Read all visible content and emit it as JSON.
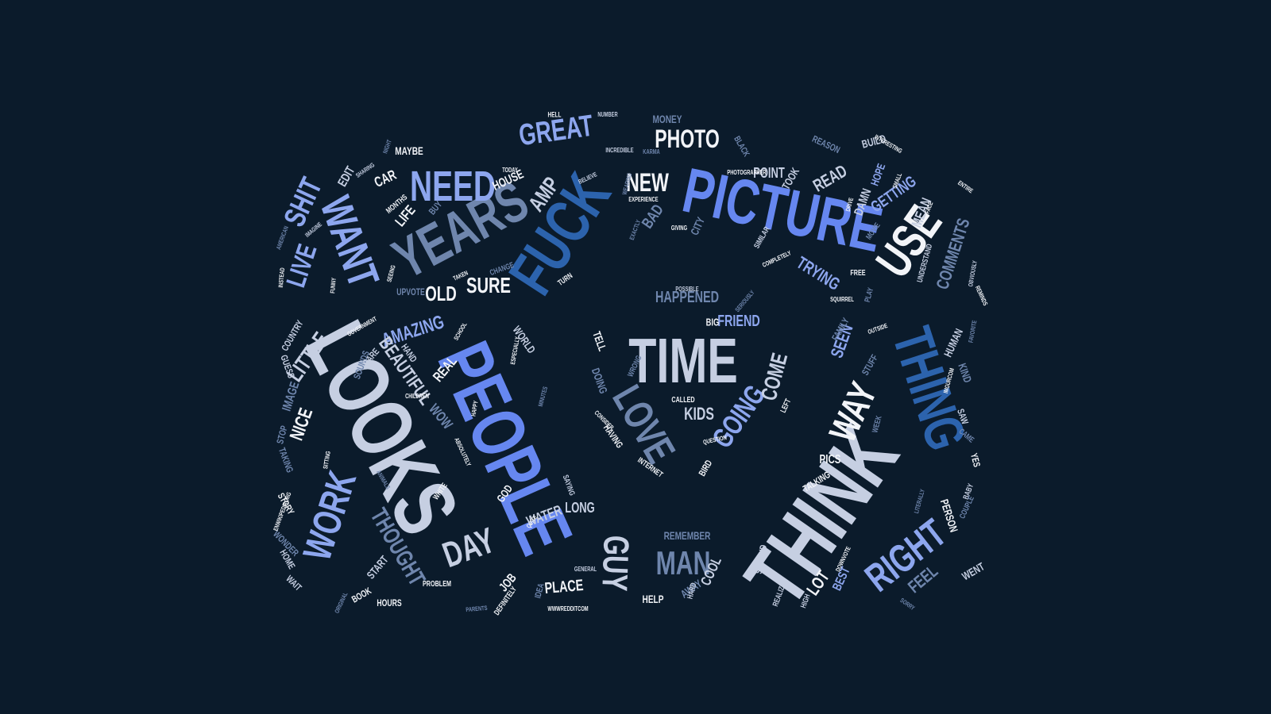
{
  "colors": {
    "background": "#0b1b2b",
    "white": "#f2f4f8",
    "pale": "#c6cfe2",
    "periwinkle": "#8da6ee",
    "blue": "#6687f0",
    "steel": "#6f86ad",
    "deep": "#2c63ad"
  },
  "words": [
    "TIME",
    "THINK",
    "LOOKS",
    "PEOPLE",
    "PICTURE",
    "FUCK",
    "YEARS",
    "THING",
    "LOVE",
    "USE",
    "WANT",
    "WORK",
    "NEED",
    "WAY",
    "RIGHT",
    "GUY",
    "MAN",
    "DAY",
    "GOING",
    "SHIT",
    "LIVE",
    "LITTLE",
    "GREAT",
    "PHOTO",
    "NEW",
    "COME",
    "THOUGHT",
    "HAPPENED",
    "FRIEND",
    "TRYING",
    "GETTING",
    "MEAN",
    "COMMENTS",
    "SEEN",
    "AMAZING",
    "BEAUTIFUL",
    "KIDS",
    "SURE",
    "OLD",
    "AMP",
    "READ",
    "POINT",
    "HOPE",
    "PICS",
    "LONG",
    "PLACE",
    "LOT",
    "BEST",
    "FEEL",
    "REMEMBER",
    "HELP",
    "COOL",
    "PERSON",
    "NICE",
    "JOB",
    "WATER",
    "START",
    "HOURS",
    "STORY",
    "WOW",
    "IMAGE",
    "CAR",
    "EDIT",
    "LIFE",
    "HOUSE",
    "MAYBE",
    "TELL",
    "DOING",
    "BIG",
    "KIND",
    "HUMAN",
    "SAW",
    "YES",
    "STUFF",
    "AWAY",
    "IDEA",
    "UPVOTE",
    "REAL",
    "HAND",
    "WORLD",
    "TAKING",
    "WAIT",
    "HOME",
    "WONDER",
    "COUNTRY",
    "GUESS",
    "MONEY",
    "BUILD",
    "REASON",
    "BLACK",
    "HELL",
    "NUMBER",
    "INCREDIBLE",
    "KARMA",
    "NIGHT",
    "TODAY",
    "BELIEVE",
    "CHANGE",
    "TURN",
    "TAKEN",
    "SEEING",
    "FUNNY",
    "INSTEAD",
    "AMERICAN",
    "IMAGINE",
    "SHARING",
    "MONTHS",
    "BUY",
    "BAD",
    "CITY",
    "GIVING",
    "EXACTLY",
    "EXPERIENCE",
    "PHOTOGRAPHER",
    "TOOK",
    "SIMILAR",
    "COMPLETELY",
    "DAMN",
    "DRIVE",
    "MOVIE",
    "FREE",
    "PLAY",
    "SQUIRREL",
    "UNDERSTAND",
    "FACE",
    "ENTIRE",
    "INTERESTING",
    "SMALL",
    "REMINDS",
    "OBVIOUSLY",
    "FAVORITE",
    "SERIOUSLY",
    "POSSIBLE",
    "WRONG",
    "CALLED",
    "QUESTION",
    "INTERNET",
    "HAVING",
    "CONSIDER",
    "BIRD",
    "LEFT",
    "SCHOOL",
    "GOVERNMENT",
    "SOUNDS",
    "CARE",
    "ESPECIALLY",
    "CHILDREN",
    "HAPPY",
    "ABSOLUTELY",
    "ANIMALS",
    "WHITE",
    "GOD",
    "QUITE",
    "SAYING",
    "MINUTES",
    "FAMILY",
    "OUTSIDE",
    "IMGURCOM",
    "WEEK",
    "CAME",
    "BABY",
    "COUPLE",
    "LITERALLY",
    "TALKING",
    "WENT",
    "SORRY",
    "DOWNVOTE",
    "SECOND",
    "REALIZE",
    "HIGH",
    "HARD",
    "GENERAL",
    "WWWREDDITCOM",
    "PARENTS",
    "DEFINITELY",
    "PROBLEM",
    "BOOK",
    "ORIGINAL",
    "ENWIKIPEDIAORG",
    "STOP",
    "SITTING",
    "WEARING"
  ]
}
